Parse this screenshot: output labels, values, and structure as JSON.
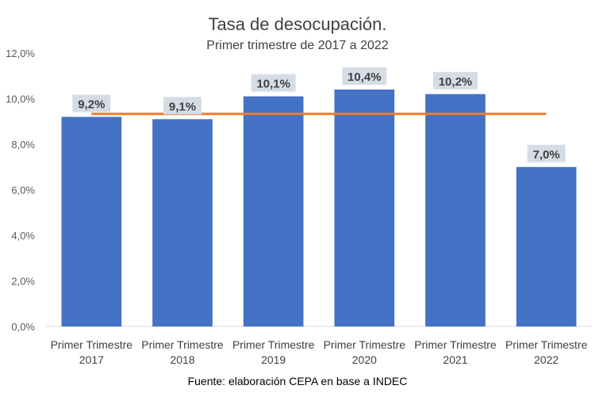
{
  "chart_data": {
    "type": "bar",
    "title": "Tasa de desocupación.",
    "subtitle": "Primer trimestre de 2017 a 2022",
    "categories": [
      [
        "Primer Trimestre",
        "2017"
      ],
      [
        "Primer Trimestre",
        "2018"
      ],
      [
        "Primer Trimestre",
        "2019"
      ],
      [
        "Primer Trimestre",
        "2020"
      ],
      [
        "Primer Trimestre",
        "2021"
      ],
      [
        "Primer Trimestre",
        "2022"
      ]
    ],
    "values": [
      9.2,
      9.1,
      10.1,
      10.4,
      10.2,
      7.0
    ],
    "data_labels": [
      "9,2%",
      "9,1%",
      "10,1%",
      "10,4%",
      "10,2%",
      "7,0%"
    ],
    "reference_line": {
      "value": 9.33
    },
    "ylim": [
      0,
      12
    ],
    "yticks": [
      0,
      2,
      4,
      6,
      8,
      10,
      12
    ],
    "ytick_labels": [
      "0,0%",
      "2,0%",
      "4,0%",
      "6,0%",
      "8,0%",
      "10,0%",
      "12,0%"
    ],
    "xlabel": "",
    "ylabel": "",
    "grid": false,
    "colors": {
      "bar": "#4472C4",
      "line": "#ED7D31",
      "label_bg": "#D6DCE5",
      "axis": "#D9D9D9"
    },
    "source": "Fuente: elaboración CEPA en base a INDEC"
  }
}
